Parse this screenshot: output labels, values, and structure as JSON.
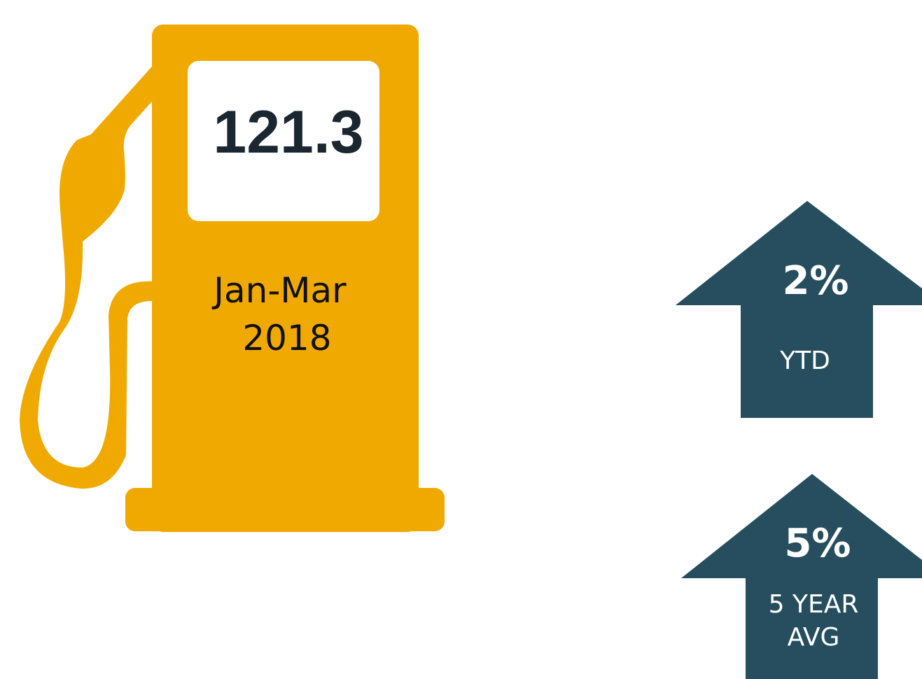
{
  "pump": {
    "value": "121.3",
    "period_line1": "Jan-Mar",
    "period_line2": "2018"
  },
  "indicators": [
    {
      "value": "2%",
      "label_lines": [
        "YTD"
      ]
    },
    {
      "value": "5%",
      "label_lines": [
        "5 YEAR",
        "AVG"
      ]
    }
  ]
}
